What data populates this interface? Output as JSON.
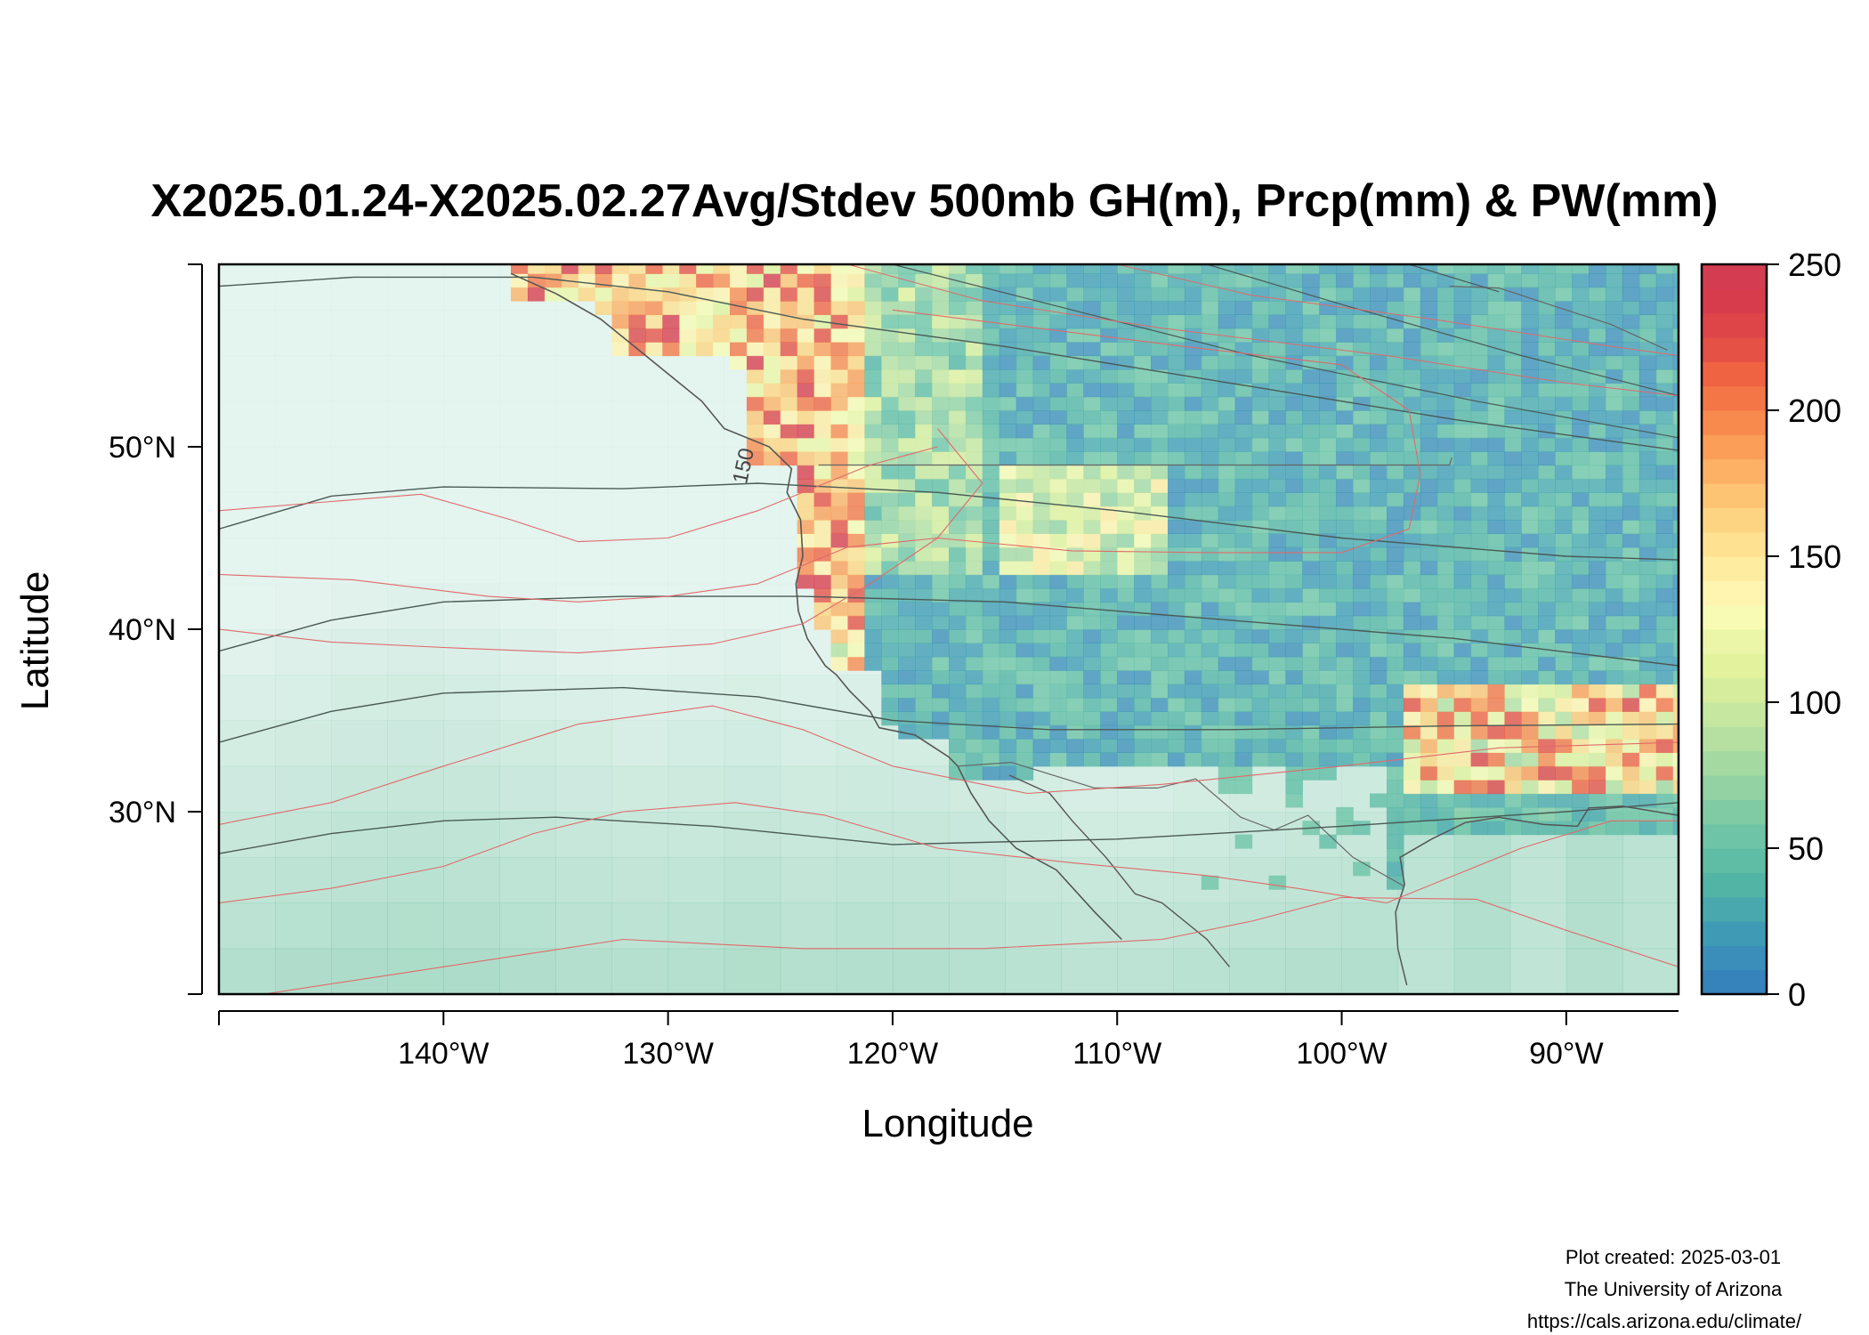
{
  "title": "X2025.01.24-X2025.02.27Avg/Stdev 500mb GH(m), Prcp(mm) & PW(mm)",
  "xlabel": "Longitude",
  "ylabel": "Latitude",
  "credits": {
    "created": "Plot created: 2025-03-01",
    "org": "The University of Arizona",
    "url": "https://cals.arizona.edu/climate/"
  },
  "contour_label": "150",
  "chart_data": {
    "type": "heatmap",
    "map_extent": {
      "lon": [
        -150,
        -85
      ],
      "lat": [
        20,
        60
      ]
    },
    "xticks": [
      {
        "value": -140,
        "label": "140°W"
      },
      {
        "value": -130,
        "label": "130°W"
      },
      {
        "value": -120,
        "label": "120°W"
      },
      {
        "value": -110,
        "label": "110°W"
      },
      {
        "value": -100,
        "label": "100°W"
      },
      {
        "value": -90,
        "label": "90°W"
      }
    ],
    "yticks": [
      {
        "value": 30,
        "label": "30°N"
      },
      {
        "value": 40,
        "label": "40°N"
      },
      {
        "value": 50,
        "label": "50°N"
      }
    ],
    "colorbar": {
      "range": [
        0,
        250
      ],
      "ticks": [
        {
          "value": 0,
          "label": "0"
        },
        {
          "value": 50,
          "label": "50"
        },
        {
          "value": 100,
          "label": "100"
        },
        {
          "value": 150,
          "label": "150"
        },
        {
          "value": 200,
          "label": "200"
        },
        {
          "value": 250,
          "label": "250"
        }
      ],
      "colors": [
        "#3682ba",
        "#3b8eb9",
        "#3f9bb5",
        "#48a8ad",
        "#52b4a5",
        "#5fbda5",
        "#6dc4a6",
        "#80cba4",
        "#92d2a3",
        "#a4d9a2",
        "#b5e0a1",
        "#c6e79f",
        "#d5ed9c",
        "#e2f29d",
        "#ecf6a8",
        "#f7fbb3",
        "#fff4b0",
        "#feeca1",
        "#fee292",
        "#fdd582",
        "#fdc474",
        "#fdb165",
        "#fb9e58",
        "#f88a4e",
        "#f47646",
        "#ef6342",
        "#e55145",
        "#dd4548",
        "#d73c4d",
        "#d43d51"
      ]
    }
  }
}
